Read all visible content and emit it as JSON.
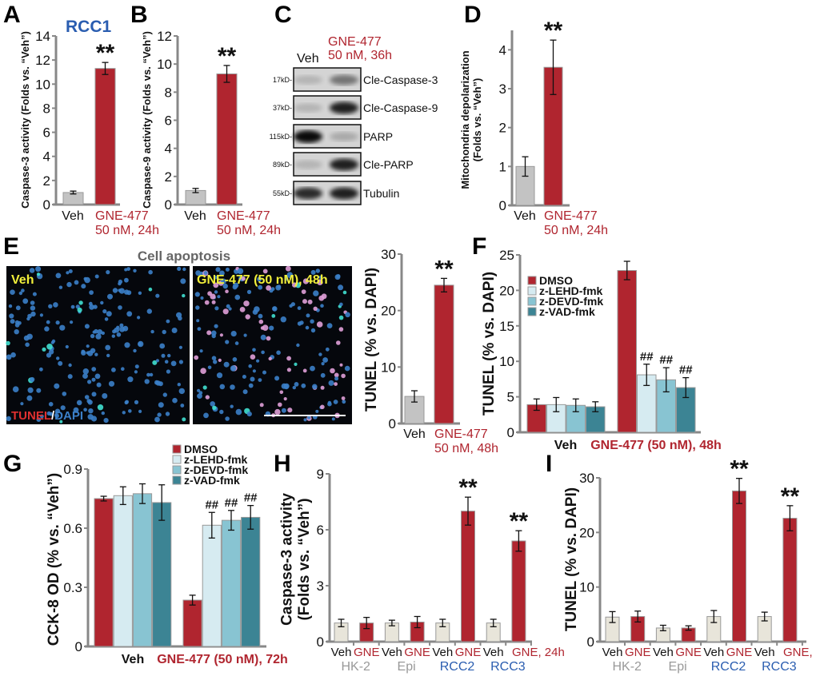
{
  "panels": {
    "A": "A",
    "B": "B",
    "C": "C",
    "D": "D",
    "E": "E",
    "F": "F",
    "G": "G",
    "H": "H",
    "I": "I"
  },
  "colors": {
    "red": "#b0252f",
    "gray": "#c3c3c3",
    "beige": "#e8e5da",
    "light": "#d6ebf1",
    "mid": "#88c4d2",
    "dark": "#3c8494",
    "blue": "#2a5db0",
    "grayText": "#999999",
    "black": "#111111",
    "yellow": "#f2f03a"
  },
  "panel_a_title": "RCC1",
  "blot": {
    "header_veh": "Veh",
    "header_gne": [
      "GNE-477",
      "50 nM, 36h"
    ],
    "rows": [
      {
        "marker": "17kD-",
        "label": "Cle-Caspase-3",
        "veh": 0.15,
        "gne": 0.45
      },
      {
        "marker": "37kD-",
        "label": "Cle-Caspase-9",
        "veh": 0.15,
        "gne": 0.85
      },
      {
        "marker": "115kD-",
        "label": "PARP",
        "veh": 0.95,
        "gne": 0.2
      },
      {
        "marker": "89kD-",
        "label": "Cle-PARP",
        "veh": 0.15,
        "gne": 0.85
      },
      {
        "marker": "55kD-",
        "label": "Tubulin",
        "veh": 0.8,
        "gne": 0.85
      }
    ]
  },
  "micro": {
    "title": "Cell apoptosis",
    "left_label": "Veh",
    "right_label": "GNE-477 (50 nM), 48h",
    "stain_tunel": "TUNEL",
    "stain_sep": "/",
    "stain_dapi": "DAPI"
  },
  "chart_data": [
    {
      "id": "A",
      "type": "bar",
      "ylabel": "Caspase-3 activity (Folds vs. “Veh”)",
      "ylim": [
        0,
        14
      ],
      "yticks": [
        "0",
        "2",
        "4",
        "6",
        "8",
        "10",
        "12",
        "14"
      ],
      "categories": [
        [
          "Veh"
        ],
        [
          "GNE-477",
          "50 nM, 24h"
        ]
      ],
      "category_colors": [
        "black",
        "red"
      ],
      "series": [
        {
          "values": [
            1.0,
            11.3
          ],
          "errors": [
            0.12,
            0.5
          ],
          "colors": [
            "gray",
            "red"
          ]
        }
      ],
      "annotations": [
        "",
        "**"
      ]
    },
    {
      "id": "B",
      "type": "bar",
      "ylabel": "Caspase-9 activity (Folds vs. “Veh”)",
      "ylim": [
        0,
        12
      ],
      "yticks": [
        "0",
        "2",
        "4",
        "6",
        "8",
        "10",
        "12"
      ],
      "categories": [
        [
          "Veh"
        ],
        [
          "GNE-477",
          "50 nM, 24h"
        ]
      ],
      "category_colors": [
        "black",
        "red"
      ],
      "series": [
        {
          "values": [
            1.0,
            9.3
          ],
          "errors": [
            0.15,
            0.6
          ],
          "colors": [
            "gray",
            "red"
          ]
        }
      ],
      "annotations": [
        "",
        "**"
      ]
    },
    {
      "id": "D",
      "type": "bar",
      "ylabel": "Mitochondria depolarization\n(Folds vs. “Veh”)",
      "ylim": [
        0,
        4.5
      ],
      "yticks": [
        "0",
        "1",
        "2",
        "3",
        "4"
      ],
      "categories": [
        [
          "Veh"
        ],
        [
          "GNE-477",
          "50 nM, 24h"
        ]
      ],
      "category_colors": [
        "black",
        "red"
      ],
      "series": [
        {
          "values": [
            1.0,
            3.55
          ],
          "errors": [
            0.25,
            0.7
          ],
          "colors": [
            "gray",
            "red"
          ]
        }
      ],
      "annotations": [
        "",
        "**"
      ]
    },
    {
      "id": "E",
      "type": "bar",
      "ylabel": "TUNEL (% vs. DAPI)",
      "ylim": [
        0,
        30
      ],
      "yticks": [
        "0",
        "10",
        "20",
        "30"
      ],
      "categories": [
        [
          "Veh"
        ],
        [
          "GNE-477",
          "50 nM, 48h"
        ]
      ],
      "category_colors": [
        "black",
        "red"
      ],
      "series": [
        {
          "values": [
            4.8,
            24.5
          ],
          "errors": [
            1.0,
            1.2
          ],
          "colors": [
            "gray",
            "red"
          ]
        }
      ],
      "annotations": [
        "",
        "**"
      ]
    },
    {
      "id": "F",
      "type": "bar",
      "ylabel": "TUNEL (% vs. DAPI)",
      "ylim": [
        0,
        25
      ],
      "yticks": [
        "0",
        "5",
        "10",
        "15",
        "20",
        "25"
      ],
      "categories": [
        [
          "Veh"
        ],
        [
          "GNE-477 (50 nM), 48h"
        ]
      ],
      "category_colors": [
        "black",
        "red"
      ],
      "legend": "upper-left",
      "series": [
        {
          "name": "DMSO",
          "values": [
            3.9,
            22.8
          ],
          "errors": [
            0.8,
            1.3
          ],
          "color": "red",
          "annotations": [
            "",
            ""
          ]
        },
        {
          "name": "z-LEHD-fmk",
          "values": [
            3.9,
            8.1
          ],
          "errors": [
            1.0,
            1.5
          ],
          "color": "light",
          "annotations": [
            "",
            "##"
          ]
        },
        {
          "name": "z-DEVD-fmk",
          "values": [
            3.8,
            7.4
          ],
          "errors": [
            0.9,
            1.7
          ],
          "color": "mid",
          "annotations": [
            "",
            "##"
          ]
        },
        {
          "name": "z-VAD-fmk",
          "values": [
            3.6,
            6.3
          ],
          "errors": [
            0.7,
            1.4
          ],
          "color": "dark",
          "annotations": [
            "",
            "##"
          ]
        }
      ]
    },
    {
      "id": "G",
      "type": "bar",
      "ylabel": "CCK-8 OD (% vs. “Veh”)",
      "ylim": [
        0,
        0.9
      ],
      "yticks": [
        "0",
        "0.3",
        "0.6",
        "0.9"
      ],
      "categories": [
        [
          "Veh"
        ],
        [
          "GNE-477 (50 nM), 72h"
        ]
      ],
      "category_colors": [
        "black",
        "red"
      ],
      "legend": "top",
      "series": [
        {
          "name": "DMSO",
          "values": [
            0.75,
            0.235
          ],
          "errors": [
            0.012,
            0.025
          ],
          "color": "red",
          "annotations": [
            "",
            ""
          ]
        },
        {
          "name": "z-LEHD-fmk",
          "values": [
            0.765,
            0.615
          ],
          "errors": [
            0.045,
            0.065
          ],
          "color": "light",
          "annotations": [
            "",
            "##"
          ]
        },
        {
          "name": "z-DEVD-fmk",
          "values": [
            0.775,
            0.64
          ],
          "errors": [
            0.05,
            0.05
          ],
          "color": "mid",
          "annotations": [
            "",
            "##"
          ]
        },
        {
          "name": "z-VAD-fmk",
          "values": [
            0.73,
            0.655
          ],
          "errors": [
            0.09,
            0.06
          ],
          "color": "dark",
          "annotations": [
            "",
            "##"
          ]
        }
      ]
    },
    {
      "id": "H",
      "type": "bar",
      "ylabel": "Caspase-3 activity\n(Folds vs. “Veh”)",
      "ylim": [
        0,
        9
      ],
      "yticks": [
        "0",
        "3",
        "6",
        "9"
      ],
      "bar_labels": [
        "Veh",
        "GNE",
        "Veh",
        "GNE",
        "Veh",
        "GNE",
        "Veh",
        "GNE, 24h"
      ],
      "bar_label_colors": [
        "black",
        "red",
        "black",
        "red",
        "black",
        "red",
        "black",
        "red"
      ],
      "groups": [
        "HK-2",
        "Epi",
        "RCC2",
        "RCC3"
      ],
      "group_colors": [
        "grayText",
        "grayText",
        "blue",
        "blue"
      ],
      "series": [
        {
          "values": [
            1.0,
            1.0,
            1.0,
            1.05,
            1.0,
            7.0,
            1.0,
            5.4
          ],
          "errors": [
            0.2,
            0.3,
            0.15,
            0.3,
            0.2,
            0.75,
            0.2,
            0.55
          ],
          "colors": [
            "beige",
            "red",
            "beige",
            "red",
            "beige",
            "red",
            "beige",
            "red"
          ]
        }
      ],
      "annotations": [
        "",
        "",
        "",
        "",
        "",
        "**",
        "",
        "**"
      ]
    },
    {
      "id": "I",
      "type": "bar",
      "ylabel": "TUNEL (% vs. DAPI)",
      "ylim": [
        0,
        30
      ],
      "yticks": [
        "0",
        "10",
        "20",
        "30"
      ],
      "bar_labels": [
        "Veh",
        "GNE",
        "Veh",
        "GNE",
        "Veh",
        "GNE",
        "Veh",
        "GNE, 48h"
      ],
      "bar_label_colors": [
        "black",
        "red",
        "black",
        "red",
        "black",
        "red",
        "black",
        "red"
      ],
      "groups": [
        "HK-2",
        "Epi",
        "RCC2",
        "RCC3"
      ],
      "group_colors": [
        "grayText",
        "grayText",
        "blue",
        "blue"
      ],
      "series": [
        {
          "values": [
            4.5,
            4.6,
            2.5,
            2.5,
            4.6,
            27.6,
            4.6,
            22.6
          ],
          "errors": [
            1.0,
            1.0,
            0.5,
            0.4,
            1.1,
            2.3,
            0.8,
            2.3
          ],
          "colors": [
            "beige",
            "red",
            "beige",
            "red",
            "beige",
            "red",
            "beige",
            "red"
          ]
        }
      ],
      "annotations": [
        "",
        "",
        "",
        "",
        "",
        "**",
        "",
        "**"
      ]
    }
  ]
}
